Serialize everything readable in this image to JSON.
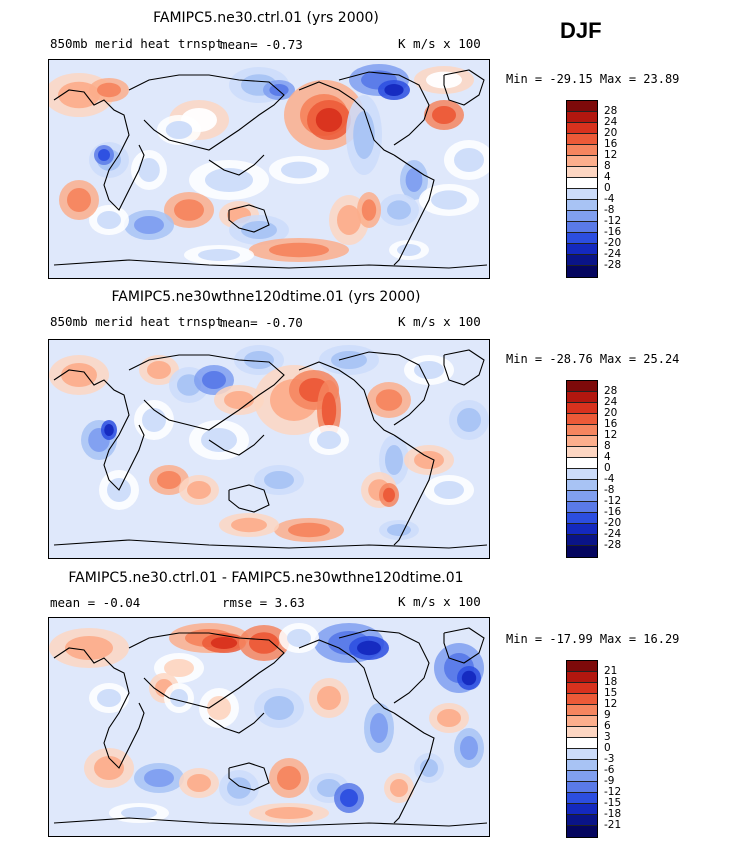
{
  "season": "DJF",
  "colors": {
    "scale": [
      "#7d0a0a",
      "#b2170f",
      "#d8321e",
      "#ec5a38",
      "#f5855f",
      "#fcae8c",
      "#fdd6c2",
      "#ffffff",
      "#ccdcfa",
      "#a8c3f4",
      "#809ff0",
      "#5a7ae8",
      "#2c4ee0",
      "#1429bf",
      "#0a1488",
      "#05065f"
    ],
    "coast": "#000000"
  },
  "chart_data": [
    {
      "type": "heatmap",
      "title": "FAMIPC5.ne30.ctrl.01 (yrs 2000)",
      "left_label": "850mb merid heat trnspt",
      "stat1": "mean=  -0.73",
      "stat2": "",
      "units": "K m/s x 100",
      "minmax": "Min = -29.15 Max =  23.89",
      "levels": [
        "28",
        "24",
        "20",
        "16",
        "12",
        "8",
        "4",
        "0",
        "-4",
        "-8",
        "-12",
        "-16",
        "-20",
        "-24",
        "-28"
      ]
    },
    {
      "type": "heatmap",
      "title": "FAMIPC5.ne30wthne120dtime.01 (yrs 2000)",
      "left_label": "850mb merid heat trnspt",
      "stat1": "mean=  -0.70",
      "stat2": "",
      "units": "K m/s x 100",
      "minmax": "Min = -28.76 Max =  25.24",
      "levels": [
        "28",
        "24",
        "20",
        "16",
        "12",
        "8",
        "4",
        "0",
        "-4",
        "-8",
        "-12",
        "-16",
        "-20",
        "-24",
        "-28"
      ]
    },
    {
      "type": "heatmap",
      "title": "FAMIPC5.ne30.ctrl.01 - FAMIPC5.ne30wthne120dtime.01",
      "left_label": "mean =  -0.04",
      "stat1": "rmse =   3.63",
      "stat2": "",
      "units": "K m/s x 100",
      "minmax": "Min = -17.99 Max =  16.29",
      "levels": [
        "21",
        "18",
        "15",
        "12",
        "9",
        "6",
        "3",
        "0",
        "-3",
        "-6",
        "-9",
        "-12",
        "-15",
        "-18",
        "-21"
      ]
    }
  ]
}
